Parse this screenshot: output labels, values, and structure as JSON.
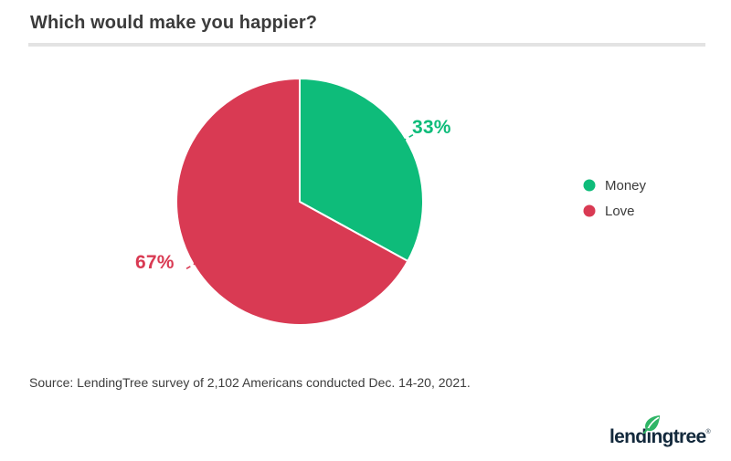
{
  "header": {
    "title": "Which would make you happier?"
  },
  "chart_data": {
    "type": "pie",
    "title": "Which would make you happier?",
    "categories": [
      "Money",
      "Love"
    ],
    "values": [
      33,
      67
    ],
    "display_labels": [
      "33%",
      "67%"
    ],
    "colors": [
      "#0EBC7A",
      "#D93A53"
    ],
    "legend_position": "right",
    "start_angle_deg": 0,
    "direction": "clockwise"
  },
  "footer": {
    "source": "Source: LendingTree survey of 2,102 Americans conducted Dec. 14-20, 2021."
  },
  "logo": {
    "brand": "lendingtree",
    "registered": "®",
    "color": "#13293C",
    "leaf_color": "#2FB566"
  }
}
